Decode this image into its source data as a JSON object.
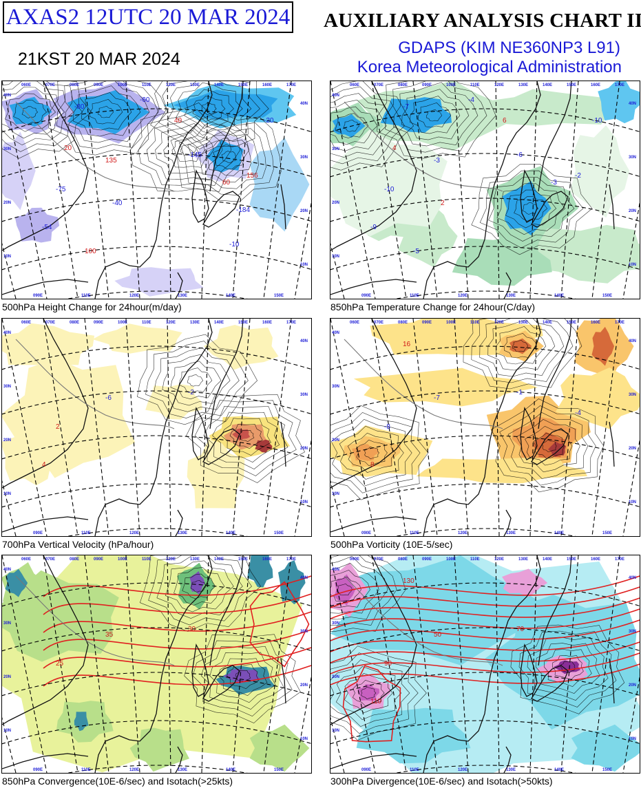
{
  "header": {
    "chart_id": "AXAS2  12UTC 20 MAR 2024",
    "local_time": "21KST 20 MAR 2024",
    "title": "AUXILIARY ANALYSIS CHART II",
    "model": "GDAPS (KIM NE360NP3 L91)",
    "agency": "Korea Meteorological Administration"
  },
  "lon_labels": [
    "060E",
    "070E",
    "080E",
    "090E",
    "100E",
    "110E",
    "120E",
    "130E",
    "140E",
    "150E",
    "160E",
    "170E"
  ],
  "bottom_lon_labels": [
    "090E",
    "110E",
    "120E",
    "130E",
    "140E",
    "150E"
  ],
  "lat_labels": [
    "40N",
    "30N",
    "20N",
    "10N"
  ],
  "panels": [
    {
      "id": "p1",
      "caption": "500hPa Height Change for 24hour(m/day)",
      "colors": [
        "#2ba3e8",
        "#5fc6f0",
        "#a9d8f5",
        "#b9b3ee",
        "#d6d2f7"
      ],
      "labels": [
        "135",
        "-145",
        "-75",
        "-54",
        "-80",
        "156",
        "-60",
        "-40",
        "20",
        "40",
        "60",
        "100",
        "-20",
        "-10",
        "-184"
      ]
    },
    {
      "id": "p2",
      "caption": "850hPa Temperature Change for 24hour(C/day)",
      "colors": [
        "#2ba3e8",
        "#5fc6f0",
        "#a9ddb8",
        "#c8eacb",
        "#e6f5e6"
      ],
      "labels": [
        "-3",
        "-6",
        "-10",
        "-9",
        "-7",
        "-2",
        "-4",
        "2",
        "4",
        "6",
        "-3",
        "-5",
        "-10"
      ]
    },
    {
      "id": "p3",
      "caption": "700hPa Vertical Velocity (hPa/hour)",
      "colors": [
        "#fcf3b8",
        "#f8e37e",
        "#e89b6a",
        "#c8534c",
        "#a63a3a"
      ],
      "labels": [
        "-6",
        "-2",
        "2",
        "4"
      ]
    },
    {
      "id": "p4",
      "caption": "500hPa Vorticity (10E-5/sec)",
      "colors": [
        "#fde38a",
        "#f9c56b",
        "#f0a055",
        "#d66a3a",
        "#a63a3a"
      ],
      "labels": [
        "-7",
        "-1",
        "-8",
        "8",
        "16",
        "-4"
      ]
    },
    {
      "id": "p5",
      "caption": "850hPa Convergence(10E-6/sec) and Isotach(>25kts)",
      "colors": [
        "#e8f29b",
        "#b8df8a",
        "#6ec07b",
        "#3a8fa5",
        "#7b4fb8"
      ],
      "labels": [
        "35",
        "30",
        "25"
      ]
    },
    {
      "id": "p6",
      "caption": "300hPa Divergence(10E-6/sec) and Isotach(>50kts)",
      "colors": [
        "#b6ecf3",
        "#7dd8e8",
        "#e8a0d8",
        "#c860c0",
        "#8a2e98"
      ],
      "labels": [
        "50",
        "70",
        "90",
        "110",
        "130"
      ]
    }
  ]
}
